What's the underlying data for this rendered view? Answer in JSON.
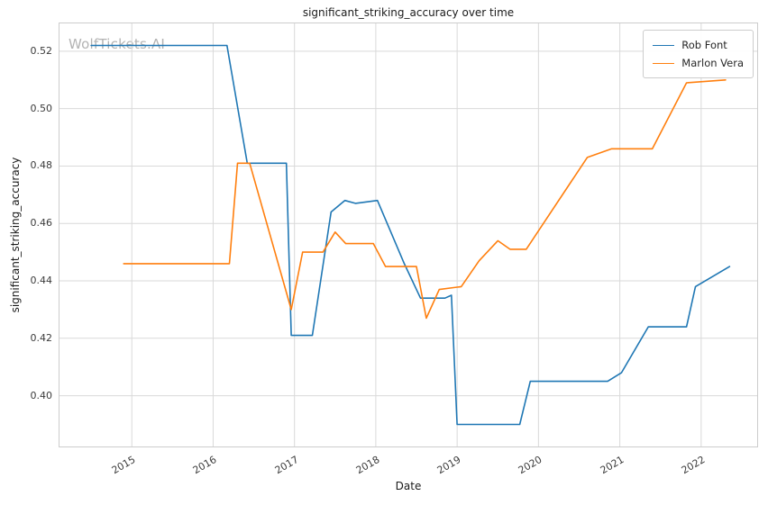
{
  "watermark": "WolfTickets.AI",
  "chart_data": {
    "type": "line",
    "title": "significant_striking_accuracy over time",
    "xlabel": "Date",
    "ylabel": "significant_striking_accuracy",
    "xlim": [
      2014.1,
      2022.7
    ],
    "ylim": [
      0.382,
      0.53
    ],
    "grid": true,
    "legend_position": "upper right",
    "x_ticks": [
      2015,
      2016,
      2017,
      2018,
      2019,
      2020,
      2021,
      2022
    ],
    "x_tick_labels": [
      "2015",
      "2016",
      "2017",
      "2018",
      "2019",
      "2020",
      "2021",
      "2022"
    ],
    "y_ticks": [
      0.4,
      0.42,
      0.44,
      0.46,
      0.48,
      0.5,
      0.52
    ],
    "y_tick_labels": [
      "0.40",
      "0.42",
      "0.44",
      "0.46",
      "0.48",
      "0.50",
      "0.52"
    ],
    "colors": {
      "rob_font": "#1f77b4",
      "marlon_vera": "#ff7f0e",
      "grid": "#d9d9d9",
      "spine": "#cccccc"
    },
    "series": [
      {
        "name": "Rob Font",
        "color": "#1f77b4",
        "points": [
          [
            2014.5,
            0.522
          ],
          [
            2016.17,
            0.522
          ],
          [
            2016.42,
            0.481
          ],
          [
            2016.9,
            0.481
          ],
          [
            2016.96,
            0.421
          ],
          [
            2017.22,
            0.421
          ],
          [
            2017.45,
            0.464
          ],
          [
            2017.62,
            0.468
          ],
          [
            2017.75,
            0.467
          ],
          [
            2018.02,
            0.468
          ],
          [
            2018.35,
            0.446
          ],
          [
            2018.55,
            0.434
          ],
          [
            2018.85,
            0.434
          ],
          [
            2018.93,
            0.435
          ],
          [
            2019.0,
            0.39
          ],
          [
            2019.77,
            0.39
          ],
          [
            2019.9,
            0.405
          ],
          [
            2020.85,
            0.405
          ],
          [
            2021.02,
            0.408
          ],
          [
            2021.35,
            0.424
          ],
          [
            2021.82,
            0.424
          ],
          [
            2021.93,
            0.438
          ],
          [
            2022.35,
            0.445
          ]
        ]
      },
      {
        "name": "Marlon Vera",
        "color": "#ff7f0e",
        "points": [
          [
            2014.9,
            0.446
          ],
          [
            2016.2,
            0.446
          ],
          [
            2016.3,
            0.481
          ],
          [
            2016.45,
            0.481
          ],
          [
            2016.96,
            0.43
          ],
          [
            2017.1,
            0.45
          ],
          [
            2017.35,
            0.45
          ],
          [
            2017.5,
            0.457
          ],
          [
            2017.63,
            0.453
          ],
          [
            2017.97,
            0.453
          ],
          [
            2018.12,
            0.445
          ],
          [
            2018.5,
            0.445
          ],
          [
            2018.62,
            0.427
          ],
          [
            2018.78,
            0.437
          ],
          [
            2019.05,
            0.438
          ],
          [
            2019.27,
            0.447
          ],
          [
            2019.5,
            0.454
          ],
          [
            2019.65,
            0.451
          ],
          [
            2019.85,
            0.451
          ],
          [
            2020.6,
            0.483
          ],
          [
            2020.9,
            0.486
          ],
          [
            2021.4,
            0.486
          ],
          [
            2021.82,
            0.509
          ],
          [
            2022.3,
            0.51
          ]
        ]
      }
    ]
  }
}
